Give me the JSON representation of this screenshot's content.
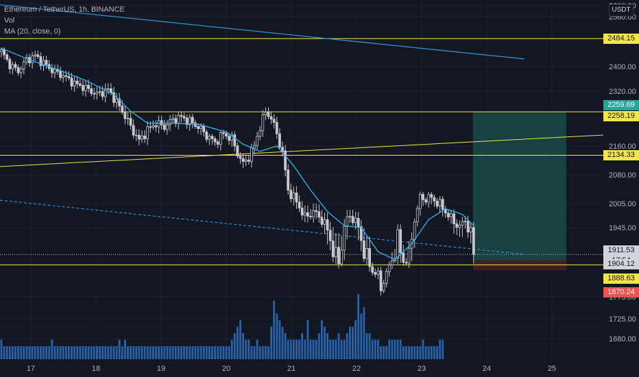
{
  "legend": {
    "symbol": "Ethereum / TetherUS, 1h, BINANCE",
    "volume": "Vol",
    "ma": "MA (20, close, 0)"
  },
  "currency": "USDT",
  "colors": {
    "background": "#131722",
    "candle": "#c8c9ce",
    "ma": "#29b6f6",
    "volume": "#2a71c4",
    "hline": "#f5e54a",
    "trendline": "#2a8fd6",
    "target_zone": "#1a4a47",
    "stop_zone": "#4a1f25"
  },
  "price_tags": [
    {
      "label": "2484.15",
      "bg": "#f5e54a",
      "fg": "#131722"
    },
    {
      "label": "2259.69",
      "bg": "#26a69a",
      "fg": "#ffffff"
    },
    {
      "label": "2258.19",
      "bg": "#f5e54a",
      "fg": "#131722"
    },
    {
      "label": "2134.33",
      "bg": "#f5e54a",
      "fg": "#131722"
    },
    {
      "label": "1911.53",
      "bg": "#d1d4dc",
      "fg": "#131722"
    },
    {
      "label": "17:54",
      "bg": "#d1d4dc",
      "fg": "#131722"
    },
    {
      "label": "1904.12",
      "bg": "#d1d4dc",
      "fg": "#131722"
    },
    {
      "label": "1888.63",
      "bg": "#f5e54a",
      "fg": "#131722"
    },
    {
      "label": "1870.24",
      "bg": "#ef5350",
      "fg": "#ffffff"
    }
  ],
  "chart_data": {
    "type": "candlestick",
    "y_axis_ticks": [
      2600,
      2560,
      2480,
      2400,
      2320,
      2240,
      2160,
      2080,
      2005,
      1945,
      1775,
      1725,
      1680
    ],
    "y_tick_labels": [
      "2600.00",
      "2560.00",
      "2480.00",
      "2400.00",
      "2320.00",
      "2240.00",
      "2160.00",
      "2080.00",
      "2005.00",
      "1945.00",
      "1775.00",
      "1725.00",
      "1680.00"
    ],
    "x_tick_labels": [
      "17",
      "18",
      "19",
      "20",
      "21",
      "22",
      "23",
      "24",
      "25"
    ],
    "horizontal_levels": [
      2484.15,
      2258.19,
      2134.33,
      1888.63
    ],
    "position": {
      "entry": 1904.12,
      "target": 2259.69,
      "stop": 1870.24
    },
    "current_price": 1911.53,
    "countdown": "17:54",
    "price_path": [
      [
        0,
        2445
      ],
      [
        3,
        2405
      ],
      [
        6,
        2385
      ],
      [
        9,
        2420
      ],
      [
        12,
        2432
      ],
      [
        15,
        2410
      ],
      [
        18,
        2388
      ],
      [
        22,
        2370
      ],
      [
        26,
        2345
      ],
      [
        30,
        2330
      ],
      [
        34,
        2310
      ],
      [
        38,
        2325
      ],
      [
        40,
        2300
      ],
      [
        43,
        2260
      ],
      [
        46,
        2215
      ],
      [
        49,
        2175
      ],
      [
        52,
        2205
      ],
      [
        55,
        2225
      ],
      [
        58,
        2215
      ],
      [
        61,
        2235
      ],
      [
        64,
        2242
      ],
      [
        67,
        2230
      ],
      [
        70,
        2215
      ],
      [
        73,
        2190
      ],
      [
        76,
        2170
      ],
      [
        79,
        2195
      ],
      [
        82,
        2180
      ],
      [
        84,
        2140
      ],
      [
        86,
        2110
      ],
      [
        88,
        2130
      ],
      [
        90,
        2160
      ],
      [
        92,
        2215
      ],
      [
        94,
        2258
      ],
      [
        96,
        2240
      ],
      [
        98,
        2195
      ],
      [
        100,
        2140
      ],
      [
        102,
        2040
      ],
      [
        105,
        2010
      ],
      [
        108,
        1970
      ],
      [
        111,
        1985
      ],
      [
        114,
        1965
      ],
      [
        117,
        1930
      ],
      [
        120,
        1895
      ],
      [
        122,
        1950
      ],
      [
        124,
        1975
      ],
      [
        126,
        1960
      ],
      [
        128,
        1930
      ],
      [
        130,
        1905
      ],
      [
        132,
        1865
      ],
      [
        134,
        1855
      ],
      [
        135,
        1800
      ],
      [
        137,
        1860
      ],
      [
        139,
        1905
      ],
      [
        141,
        1930
      ],
      [
        143,
        1900
      ],
      [
        145,
        1905
      ],
      [
        147,
        1965
      ],
      [
        149,
        2020
      ],
      [
        151,
        2018
      ],
      [
        153,
        2020
      ],
      [
        155,
        2008
      ],
      [
        157,
        1995
      ],
      [
        159,
        1975
      ],
      [
        161,
        1960
      ],
      [
        163,
        1945
      ],
      [
        165,
        1965
      ],
      [
        167,
        1932
      ],
      [
        168,
        1911.53
      ]
    ],
    "ma_path": [
      [
        0,
        2455
      ],
      [
        10,
        2420
      ],
      [
        20,
        2390
      ],
      [
        30,
        2355
      ],
      [
        40,
        2310
      ],
      [
        46,
        2260
      ],
      [
        52,
        2225
      ],
      [
        60,
        2225
      ],
      [
        70,
        2222
      ],
      [
        80,
        2200
      ],
      [
        86,
        2165
      ],
      [
        92,
        2145
      ],
      [
        98,
        2160
      ],
      [
        104,
        2105
      ],
      [
        110,
        2040
      ],
      [
        116,
        1985
      ],
      [
        122,
        1950
      ],
      [
        128,
        1945
      ],
      [
        134,
        1915
      ],
      [
        140,
        1905
      ],
      [
        146,
        1925
      ],
      [
        152,
        1965
      ],
      [
        158,
        1992
      ],
      [
        164,
        1978
      ],
      [
        168,
        1950
      ]
    ],
    "volume_heights": [
      3,
      2,
      2,
      2,
      2,
      2,
      2,
      2,
      2,
      2,
      2,
      2,
      2,
      2,
      2,
      2,
      2,
      2,
      3,
      2,
      2,
      2,
      2,
      2,
      2,
      2,
      2,
      2,
      2,
      2,
      2,
      2,
      2,
      2,
      2,
      2,
      2,
      2,
      2,
      2,
      2,
      2,
      3,
      2,
      3,
      2,
      2,
      2,
      2,
      2,
      2,
      2,
      2,
      2,
      2,
      2,
      2,
      2,
      2,
      2,
      2,
      2,
      2,
      2,
      2,
      2,
      2,
      2,
      2,
      2,
      2,
      2,
      2,
      2,
      2,
      2,
      2,
      2,
      2,
      2,
      2,
      2,
      3,
      4,
      5,
      6,
      4,
      3,
      3,
      2,
      2,
      3,
      2,
      2,
      2,
      2,
      5,
      9,
      7,
      6,
      5,
      4,
      3,
      3,
      3,
      3,
      3,
      4,
      3,
      6,
      3,
      3,
      3,
      4,
      6,
      5,
      4,
      3,
      3,
      3,
      4,
      3,
      3,
      4,
      5,
      5,
      6,
      10,
      7,
      8,
      4,
      4,
      3,
      3,
      3,
      2,
      2,
      2,
      3,
      3,
      3,
      3,
      3,
      2,
      2,
      2,
      2,
      2,
      2,
      2,
      3,
      2,
      2,
      2,
      2,
      2,
      3,
      3
    ]
  }
}
